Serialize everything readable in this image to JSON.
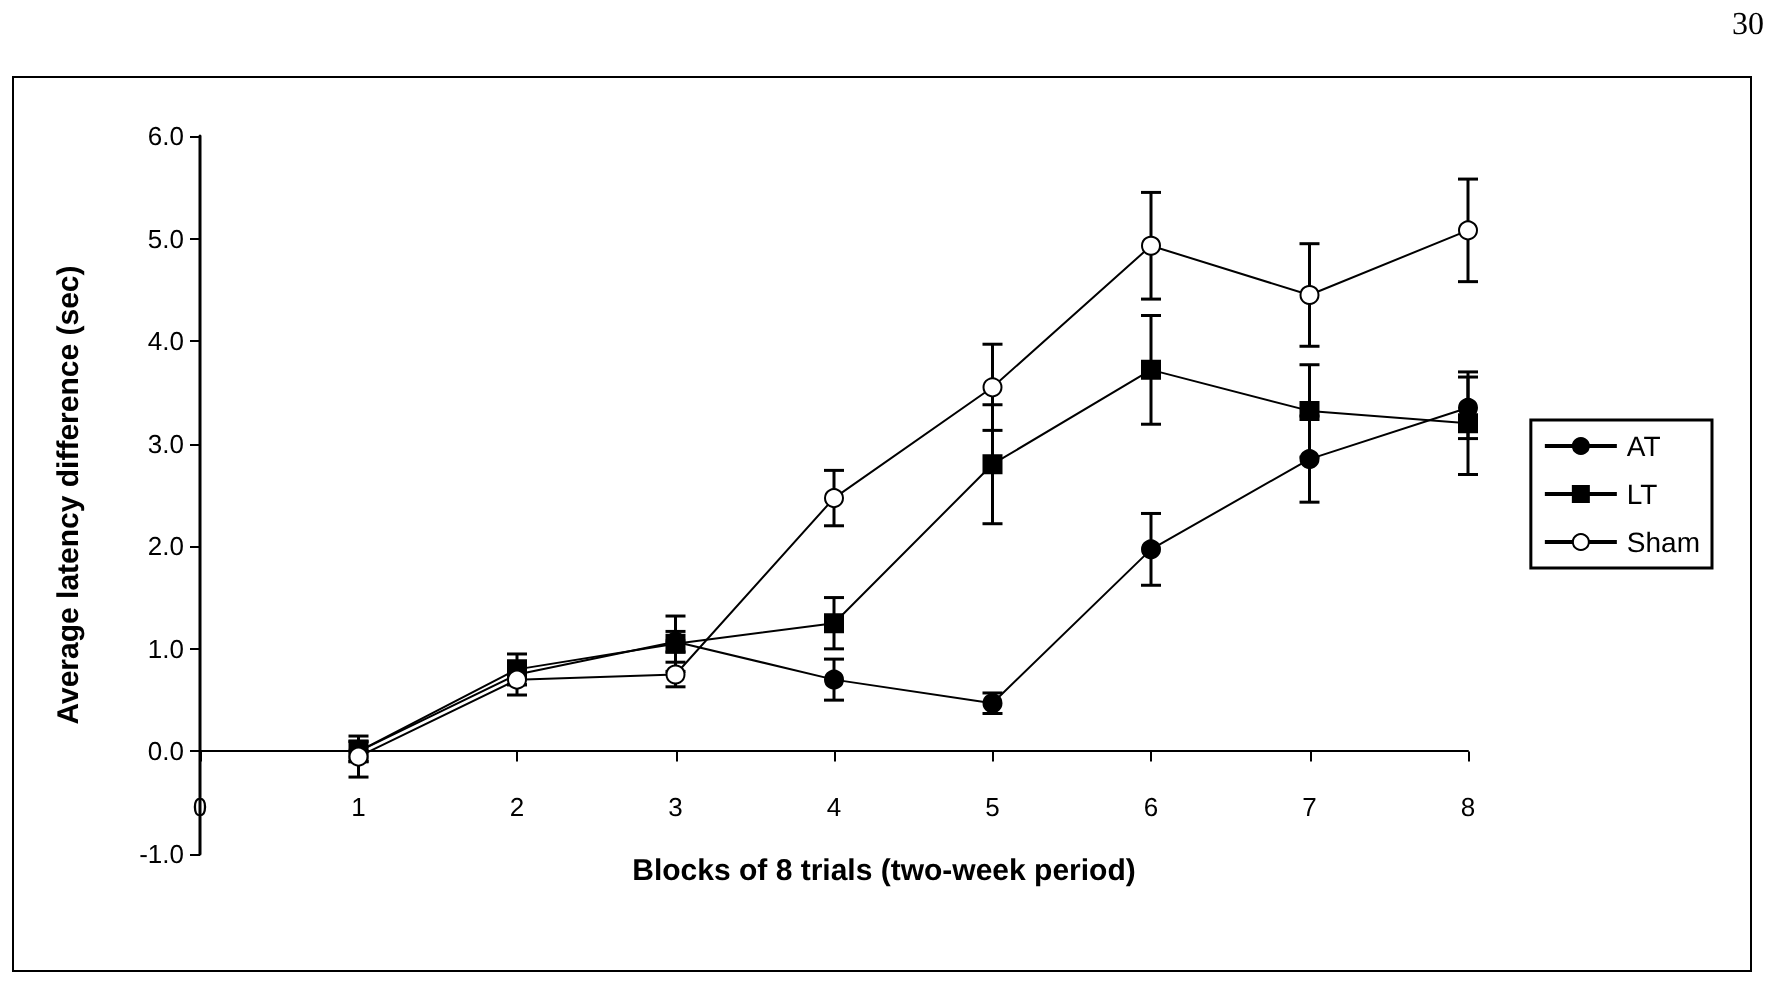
{
  "chart_data": {
    "type": "line",
    "xlabel": "Blocks of 8 trials (two-week period)",
    "ylabel": "Average latency difference (sec)",
    "annotations": [
      "30"
    ],
    "x": [
      1,
      2,
      3,
      4,
      5,
      6,
      7,
      8
    ],
    "xlim": [
      0,
      8
    ],
    "xticks": [
      0,
      1,
      2,
      3,
      4,
      5,
      6,
      7,
      8
    ],
    "ylim": [
      -1,
      6
    ],
    "yticks": [
      {
        "value": -1,
        "label": "-1.0"
      },
      {
        "value": 0,
        "label": "0.0"
      },
      {
        "value": 1,
        "label": "1.0"
      },
      {
        "value": 2,
        "label": "2.0"
      },
      {
        "value": 3,
        "label": "3.0"
      },
      {
        "value": 4,
        "label": "4.0"
      },
      {
        "value": 5,
        "label": "5.0"
      },
      {
        "value": 6,
        "label": "6.0"
      }
    ],
    "grid": false,
    "legend": "right",
    "line_style": "solid",
    "series": [
      {
        "name": "AT",
        "color": "#000000",
        "marker": "circle",
        "values": [
          0.0,
          0.75,
          1.07,
          0.7,
          0.47,
          1.97,
          2.85,
          3.35
        ],
        "errors": [
          0.1,
          0.1,
          0.1,
          0.2,
          0.1,
          0.35,
          0.42,
          0.3
        ]
      },
      {
        "name": "LT",
        "color": "#000000",
        "marker": "square",
        "values": [
          0.0,
          0.8,
          1.05,
          1.25,
          2.8,
          3.72,
          3.32,
          3.2
        ],
        "errors": [
          0.1,
          0.15,
          0.27,
          0.25,
          0.58,
          0.53,
          0.45,
          0.5
        ]
      },
      {
        "name": "Sham",
        "color": "#000000",
        "marker": "circle",
        "colors": [
          "#ffffff",
          "#ffffff",
          "#ffffff",
          "#ffffff",
          "#ffffff",
          "#ffffff",
          "#ffffff",
          "#ffffff"
        ],
        "values": [
          -0.05,
          0.7,
          0.75,
          2.47,
          3.55,
          4.93,
          4.45,
          5.08
        ],
        "errors": [
          0.2,
          0.15,
          0.12,
          0.27,
          0.42,
          0.52,
          0.5,
          0.5
        ]
      }
    ]
  }
}
